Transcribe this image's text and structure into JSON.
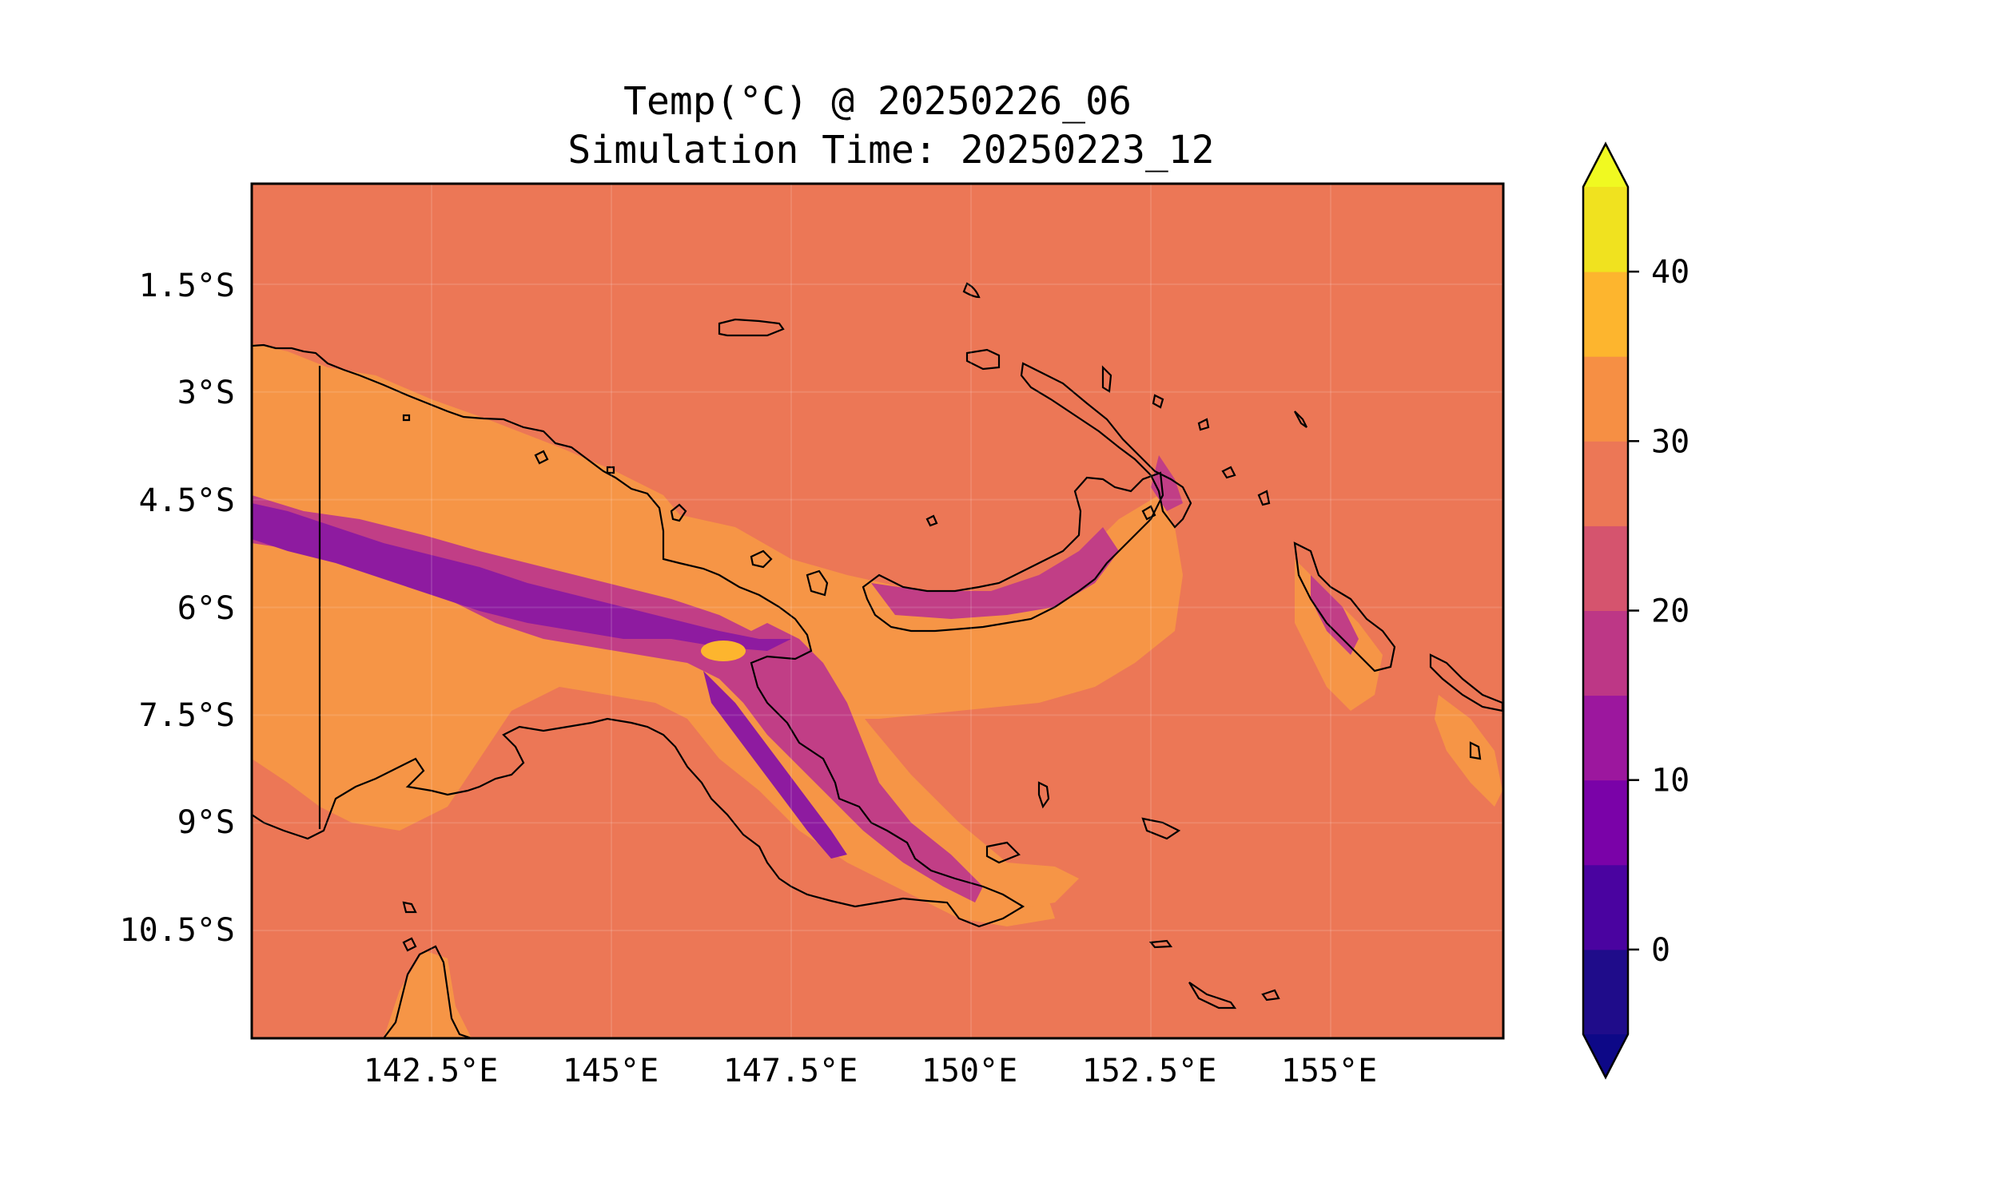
{
  "title_line1": "Temp(°C) @ 20250226_06",
  "title_line2": "Simulation Time: 20250223_12",
  "lat_ticks": [
    "1.5°S",
    "3°S",
    "4.5°S",
    "6°S",
    "7.5°S",
    "9°S",
    "10.5°S"
  ],
  "lon_ticks": [
    "142.5°E",
    "145°E",
    "147.5°E",
    "150°E",
    "152.5°E",
    "155°E"
  ],
  "colorbar": {
    "ticks": [
      "0",
      "10",
      "20",
      "30",
      "40"
    ],
    "tick_values": [
      0,
      10,
      20,
      30,
      40
    ],
    "range": [
      -5,
      45
    ],
    "levels": [
      -5,
      0,
      5,
      10,
      15,
      20,
      25,
      30,
      35,
      40,
      45
    ],
    "colors": [
      "#1f0c8a",
      "#4a03a0",
      "#7a02a8",
      "#9c179e",
      "#bd3786",
      "#d5546e",
      "#ec7756",
      "#f68f44",
      "#fdb52e",
      "#f0e21f"
    ],
    "under_color": "#0d0887",
    "over_color": "#f0f921",
    "extend": "both"
  },
  "map": {
    "background_color": "#ec7756",
    "land_warm_color": "#f69546",
    "highland_color": "#c13e86",
    "peak_color": "#8e1ba0",
    "hot_spot_color": "#fdb52e",
    "coast_color": "#000000"
  },
  "chart_data": {
    "type": "heatmap",
    "title": "Temp(°C) @ 20250226_06\nSimulation Time: 20250223_12",
    "x_axis": "longitude",
    "y_axis": "latitude",
    "lon_tick_values": [
      142.5,
      145,
      147.5,
      150,
      152.5,
      155
    ],
    "lat_tick_values": [
      -1.5,
      -3,
      -4.5,
      -6,
      -7.5,
      -9,
      -10.5
    ],
    "xlim": [
      140.0,
      157.4
    ],
    "ylim": [
      -12.0,
      -0.1
    ],
    "value_range": [
      -5,
      45
    ],
    "ocean_value_approx": 28,
    "grid": true
  }
}
